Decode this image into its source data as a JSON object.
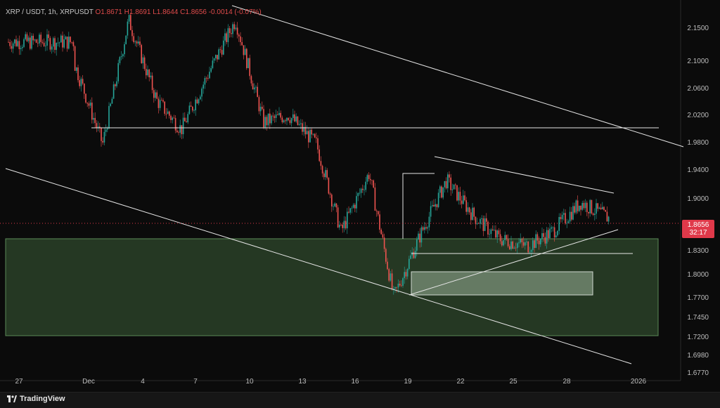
{
  "header": {
    "symbol": "XRP / USDT",
    "interval": "1h",
    "exchange": "XRPUSDT",
    "ohlc": "O1.8671  H1.8691  L1.8644  C1.8656  -0.0014 (-0.07%)"
  },
  "price_tag": {
    "price": "1.8656",
    "countdown": "32:17"
  },
  "footer": {
    "brand": "TradingView"
  },
  "colors": {
    "background": "#0b0b0b",
    "bull": "#26a69a",
    "bear": "#ef5350",
    "zone": "#2f4a2c",
    "lines": "#e6e6e6"
  },
  "chart_data": {
    "type": "candlestick",
    "y_ticks": [
      "2.1500",
      "2.1000",
      "2.0600",
      "2.0200",
      "1.9800",
      "1.9400",
      "1.9000",
      "1.8656",
      "1.8300",
      "1.8000",
      "1.7700",
      "1.7450",
      "1.7200",
      "1.6980",
      "1.6770"
    ],
    "x_ticks": [
      "27",
      "Dec",
      "4",
      "7",
      "10",
      "13",
      "16",
      "19",
      "22",
      "25",
      "28",
      "2026"
    ],
    "ylim": [
      1.677,
      2.17
    ],
    "last_price": 1.8656,
    "price_path": [
      {
        "x": "Dec",
        "y": 2.1
      },
      {
        "x": "Dec",
        "y": 1.99
      },
      {
        "x": "4",
        "y": 2.16
      },
      {
        "x": "4",
        "y": 2.05
      },
      {
        "x": "7",
        "y": 2.01
      },
      {
        "x": "7",
        "y": 2.09
      },
      {
        "x": "10",
        "y": 2.16
      },
      {
        "x": "10",
        "y": 2.02
      },
      {
        "x": "13",
        "y": 2.03
      },
      {
        "x": "13",
        "y": 1.99
      },
      {
        "x": "16",
        "y": 1.87
      },
      {
        "x": "16",
        "y": 1.95
      },
      {
        "x": "19",
        "y": 1.78
      },
      {
        "x": "19",
        "y": 1.87
      },
      {
        "x": "22",
        "y": 1.94
      },
      {
        "x": "22",
        "y": 1.89
      },
      {
        "x": "25",
        "y": 1.86
      },
      {
        "x": "25",
        "y": 1.85
      },
      {
        "x": "28",
        "y": 1.87
      },
      {
        "x": "28",
        "y": 1.91
      },
      {
        "x": "2026",
        "y": 1.8656
      }
    ],
    "zones": [
      {
        "name": "demand-zone",
        "y_low": 1.72,
        "y_high": 1.845
      },
      {
        "name": "inner-box",
        "y_low": 1.773,
        "y_high": 1.803
      }
    ],
    "levels": [
      2.0,
      1.825
    ]
  }
}
